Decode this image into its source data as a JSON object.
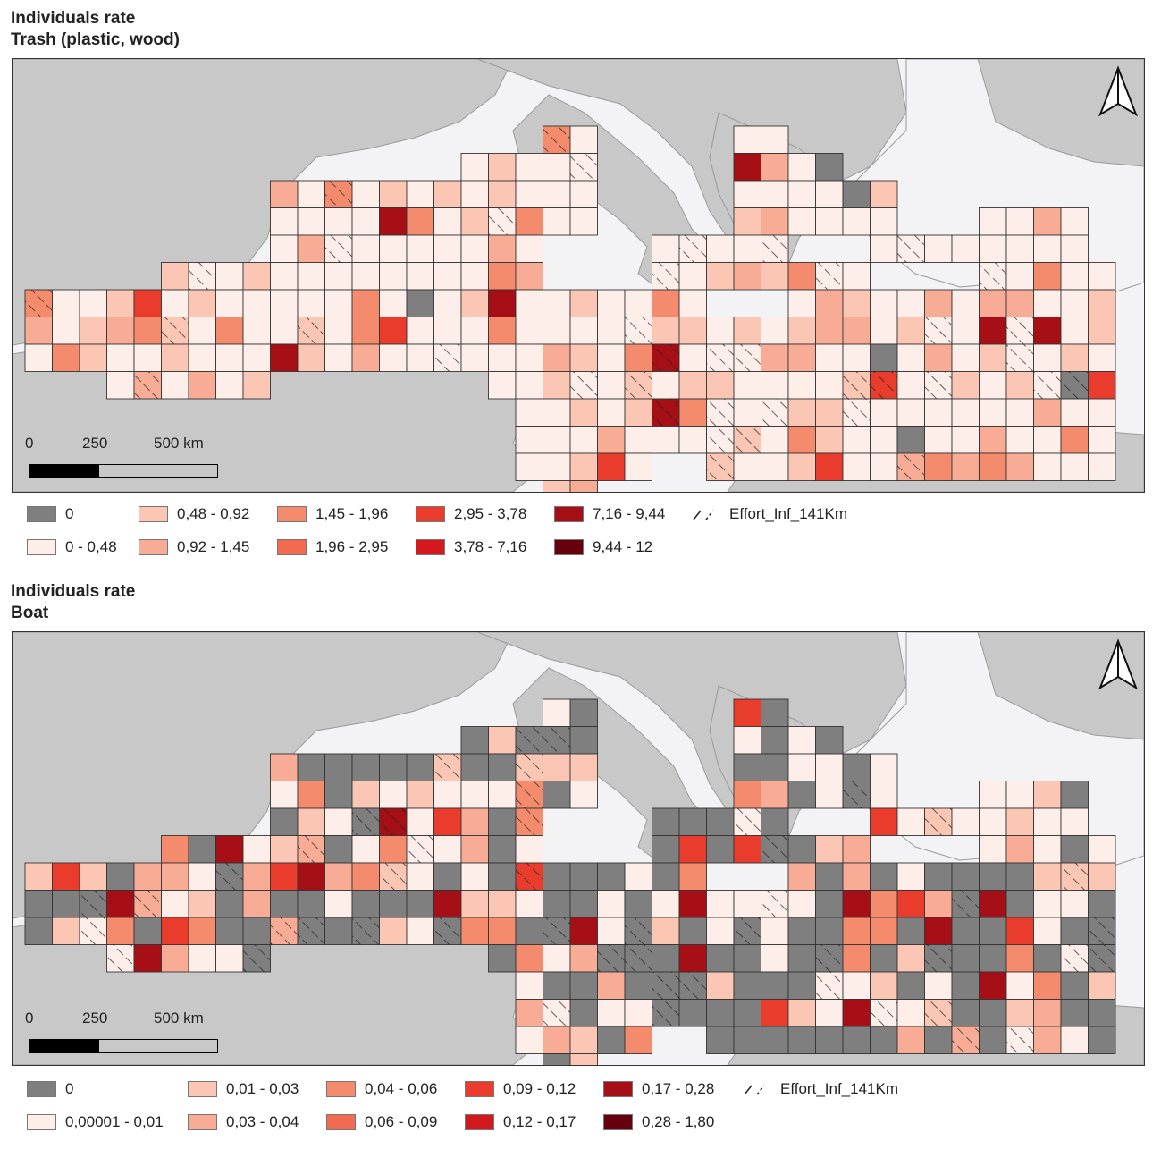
{
  "maps": [
    {
      "title_line1": "Individuals rate",
      "title_line2": "Trash (plastic, wood)",
      "scale": {
        "labels": [
          "0",
          "250",
          "500 km"
        ]
      },
      "legend": [
        {
          "label": "0",
          "color": "#7f7f7f"
        },
        {
          "label": "0 - 0,48",
          "color": "#fdeee9"
        },
        {
          "label": "0,48 - 0,92",
          "color": "#fbc6b4"
        },
        {
          "label": "0,92 - 1,45",
          "color": "#f8ac96"
        },
        {
          "label": "1,45 - 1,96",
          "color": "#f58b6d"
        },
        {
          "label": "1,96 - 2,95",
          "color": "#f26a50"
        },
        {
          "label": "2,95 - 3,78",
          "color": "#ea3c2c"
        },
        {
          "label": "3,78 - 7,16",
          "color": "#d3191e"
        },
        {
          "label": "7,16 - 9,44",
          "color": "#a50f15"
        },
        {
          "label": "9,44 - 12",
          "color": "#67000d"
        },
        {
          "label": "Effort_Inf_141Km",
          "color": "hatch"
        }
      ]
    },
    {
      "title_line1": "Individuals rate",
      "title_line2": "Boat",
      "scale": {
        "labels": [
          "0",
          "250",
          "500 km"
        ]
      },
      "legend": [
        {
          "label": "0",
          "color": "#7f7f7f"
        },
        {
          "label": "0,00001 - 0,01",
          "color": "#fdeee9"
        },
        {
          "label": "0,01 - 0,03",
          "color": "#fbc6b4"
        },
        {
          "label": "0,03 - 0,04",
          "color": "#f8ac96"
        },
        {
          "label": "0,04 - 0,06",
          "color": "#f58b6d"
        },
        {
          "label": "0,06 - 0,09",
          "color": "#f26a50"
        },
        {
          "label": "0,09 - 0,12",
          "color": "#ea3c2c"
        },
        {
          "label": "0,12 - 0,17",
          "color": "#d3191e"
        },
        {
          "label": "0,17 - 0,28",
          "color": "#a50f15"
        },
        {
          "label": "0,28 - 1,80",
          "color": "#67000d"
        },
        {
          "label": "Effort_Inf_141Km",
          "color": "hatch"
        }
      ]
    }
  ],
  "colors": {
    "land": "#c8c8c8",
    "sea": "#f3f3f5",
    "grid_line": "#333333"
  },
  "icons": [
    "north-arrow-icon"
  ]
}
